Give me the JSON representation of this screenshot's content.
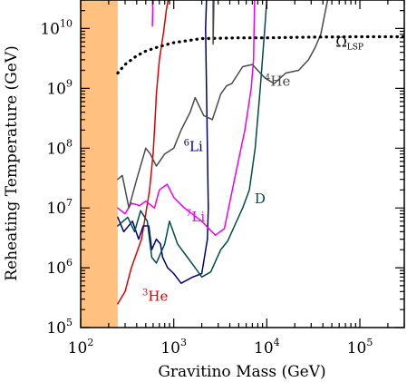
{
  "chart_data": {
    "type": "line",
    "xlabel": "Gravitino Mass (GeV)",
    "ylabel": "Reheating Temperature (GeV)",
    "x_scale": "log",
    "y_scale": "log",
    "xlim": [
      100,
      300000
    ],
    "ylim": [
      100000,
      30000000000
    ],
    "x_ticks": [
      {
        "value": 100,
        "base": "10",
        "exp": "2"
      },
      {
        "value": 1000,
        "base": "10",
        "exp": "3"
      },
      {
        "value": 10000,
        "base": "10",
        "exp": "4"
      },
      {
        "value": 100000,
        "base": "10",
        "exp": "5"
      }
    ],
    "y_ticks": [
      {
        "value": 100000,
        "base": "10",
        "exp": "5"
      },
      {
        "value": 1000000,
        "base": "10",
        "exp": "6"
      },
      {
        "value": 10000000,
        "base": "10",
        "exp": "7"
      },
      {
        "value": 100000000,
        "base": "10",
        "exp": "8"
      },
      {
        "value": 1000000000,
        "base": "10",
        "exp": "9"
      },
      {
        "value": 10000000000,
        "base": "10",
        "exp": "10"
      }
    ],
    "excluded_region": {
      "color": "#ffc080",
      "x_range": [
        100,
        250
      ]
    },
    "series": [
      {
        "label_main": "He",
        "label_sup": "3",
        "label_sub": "",
        "label_pos": [
          460,
          280000
        ],
        "color": "#dd0000",
        "dash": "solid",
        "points": [
          [
            250,
            250000
          ],
          [
            300,
            400000
          ],
          [
            350,
            1000000
          ],
          [
            450,
            3000000
          ],
          [
            500,
            8000000
          ],
          [
            550,
            20000000
          ],
          [
            600,
            80000000
          ],
          [
            630,
            300000000
          ],
          [
            650,
            800000000
          ],
          [
            700,
            3000000000
          ],
          [
            780,
            9000000000
          ],
          [
            830,
            20000000000
          ],
          [
            870,
            30000000000
          ]
        ]
      },
      {
        "label_main": "Li",
        "label_sup": "6",
        "label_sub": "",
        "label_pos": [
          1280,
          90000000
        ],
        "color": "#00007a",
        "dash": "solid",
        "points": [
          [
            250,
            7000000
          ],
          [
            290,
            4000000
          ],
          [
            360,
            6000000
          ],
          [
            420,
            3000000
          ],
          [
            470,
            5000000
          ],
          [
            540,
            5000000
          ],
          [
            580,
            2000000
          ],
          [
            650,
            3000000
          ],
          [
            720,
            2500000
          ],
          [
            760,
            1500000
          ],
          [
            860,
            1000000
          ],
          [
            1000,
            800000
          ],
          [
            1200,
            550000
          ],
          [
            1600,
            700000
          ],
          [
            2000,
            800000
          ],
          [
            2300,
            3000000
          ],
          [
            2350,
            10000000
          ],
          [
            2300,
            100000000
          ],
          [
            2200,
            10000000000
          ],
          [
            2250,
            30000000000
          ]
        ]
      },
      {
        "label_main": "Li",
        "label_sup": "7",
        "label_sub": "",
        "label_pos": [
          1350,
          6000000
        ],
        "color": "#ee00ee",
        "dash": "solid",
        "points": [
          [
            250,
            10000000
          ],
          [
            300,
            8000000
          ],
          [
            350,
            12000000
          ],
          [
            430,
            11000000
          ],
          [
            500,
            13000000
          ],
          [
            620,
            10000000
          ],
          [
            700,
            20000000
          ],
          [
            850,
            25000000
          ],
          [
            1000,
            15000000
          ],
          [
            1300,
            10000000
          ],
          [
            2000,
            6000000
          ],
          [
            2800,
            3500000
          ],
          [
            3500,
            4500000
          ],
          [
            4500,
            30000000
          ],
          [
            5800,
            200000000
          ],
          [
            6800,
            1000000000
          ],
          [
            7200,
            3000000000
          ],
          [
            7400,
            30000000000
          ]
        ]
      },
      {
        "label_main": "D",
        "label_sup": "",
        "label_sub": "",
        "label_pos": [
          7400,
          12000000
        ],
        "color": "#004a4a",
        "dash": "solid",
        "points": [
          [
            250,
            5000000
          ],
          [
            320,
            7000000
          ],
          [
            380,
            4000000
          ],
          [
            440,
            9000000
          ],
          [
            520,
            6000000
          ],
          [
            580,
            1500000
          ],
          [
            650,
            1200000
          ],
          [
            800,
            2500000
          ],
          [
            900,
            6000000
          ],
          [
            1100,
            2500000
          ],
          [
            1400,
            1500000
          ],
          [
            1700,
            1000000
          ],
          [
            2000,
            700000
          ],
          [
            2500,
            850000
          ],
          [
            3200,
            2000000
          ],
          [
            3800,
            2800000
          ],
          [
            4500,
            5000000
          ],
          [
            5500,
            10000000
          ],
          [
            6500,
            20000000
          ],
          [
            7500,
            100000000
          ],
          [
            8500,
            1000000000
          ],
          [
            9500,
            10000000000
          ],
          [
            10000,
            30000000000
          ]
        ]
      },
      {
        "label_main": "He",
        "label_sup": "4",
        "label_sub": "",
        "label_pos": [
          9500,
          1100000000
        ],
        "color": "#4a4a4a",
        "dash": "solid",
        "points": [
          [
            250,
            30000000
          ],
          [
            280,
            35000000
          ],
          [
            330,
            10000000
          ],
          [
            400,
            30000000
          ],
          [
            500,
            100000000
          ],
          [
            560,
            80000000
          ],
          [
            650,
            50000000
          ],
          [
            800,
            80000000
          ],
          [
            1000,
            100000000
          ],
          [
            1200,
            200000000
          ],
          [
            1500,
            400000000
          ],
          [
            1700,
            700000000
          ],
          [
            2100,
            350000000
          ],
          [
            2600,
            300000000
          ],
          [
            3200,
            800000000
          ],
          [
            3700,
            1100000000
          ],
          [
            4200,
            1200000000
          ],
          [
            5500,
            2300000000
          ],
          [
            7000,
            2500000000
          ],
          [
            9500,
            1500000000
          ],
          [
            12000,
            1200000000
          ],
          [
            16000,
            1800000000
          ],
          [
            22000,
            2000000000
          ],
          [
            28000,
            3000000000
          ],
          [
            33000,
            4800000000
          ],
          [
            38000,
            8000000000
          ],
          [
            45000,
            30000000000
          ]
        ]
      },
      {
        "label_main": "Ω",
        "label_sup": "",
        "label_sub": "LSP",
        "label_pos": [
          55000,
          5000000000
        ],
        "color": "#000000",
        "dash": "dotted",
        "points": [
          [
            250,
            1800000000
          ],
          [
            300,
            2500000000
          ],
          [
            400,
            3500000000
          ],
          [
            500,
            4200000000
          ],
          [
            700,
            5000000000
          ],
          [
            1000,
            5800000000
          ],
          [
            2000,
            6800000000
          ],
          [
            5000,
            7000000000
          ],
          [
            10000,
            7000000000
          ],
          [
            30000,
            7200000000
          ],
          [
            100000,
            7300000000
          ],
          [
            300000,
            7300000000
          ]
        ]
      },
      {
        "label_main": "",
        "label_sup": "",
        "label_sub": "",
        "label_pos": null,
        "color": "#ee00ee",
        "dash": "solid",
        "points": [
          [
            590,
            11000000000
          ],
          [
            595,
            22000000000
          ],
          [
            590,
            30000000000
          ]
        ]
      },
      {
        "label_main": "",
        "label_sup": "",
        "label_sub": "",
        "label_pos": null,
        "color": "#4a4a4a",
        "dash": "solid",
        "points": [
          [
            2650,
            30000000000
          ],
          [
            2650,
            5500000000
          ],
          [
            2700,
            30000000000
          ]
        ]
      }
    ]
  }
}
